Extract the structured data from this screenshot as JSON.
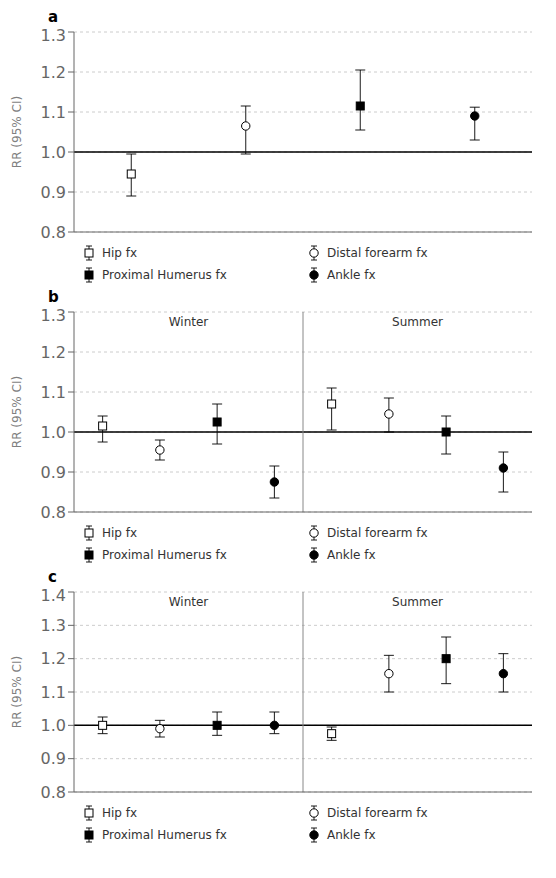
{
  "chart_data": [
    {
      "type": "scatter",
      "title": "a",
      "ylabel": "RR (95% CI)",
      "ylim": [
        0.8,
        1.3
      ],
      "yticks": [
        0.8,
        0.9,
        {
          "value": 1.0,
          "label": "1.0"
        },
        1.1,
        1.2,
        1.3
      ],
      "grid": true,
      "hline": 1.0,
      "tick_labels": "y",
      "legend": "bottom",
      "categories": [
        null,
        null,
        null,
        null
      ],
      "series": [
        {
          "name": "Hip fx",
          "color": "#000000",
          "marker": "open-square",
          "values": [
            0.945,
            null,
            null,
            null
          ],
          "error_low": [
            0.055,
            null,
            null,
            null
          ],
          "error_high": [
            0.05,
            null,
            null,
            null
          ]
        },
        {
          "name": "Distal forearm fx",
          "color": "#000000",
          "marker": "open-circle",
          "values": [
            null,
            1.065,
            null,
            null
          ],
          "error_low": [
            null,
            0.07,
            null,
            null
          ],
          "error_high": [
            null,
            0.05,
            null,
            null
          ]
        },
        {
          "name": "Proximal Humerus fx",
          "color": "#000000",
          "marker": "square",
          "values": [
            null,
            null,
            1.115,
            null
          ],
          "error_low": [
            null,
            null,
            0.06,
            null
          ],
          "error_high": [
            null,
            null,
            0.09,
            null
          ]
        },
        {
          "name": "Ankle fx",
          "color": "#000000",
          "marker": "circle",
          "values": [
            null,
            null,
            null,
            1.09
          ],
          "error_low": [
            null,
            null,
            null,
            0.06
          ],
          "error_high": [
            null,
            null,
            null,
            0.022
          ]
        }
      ]
    },
    {
      "type": "scatter",
      "title": "b",
      "ylabel": "RR (95% CI)",
      "ylim": [
        0.8,
        1.3
      ],
      "yticks": [
        0.8,
        0.9,
        {
          "value": 1.0,
          "label": "1.0"
        },
        1.1,
        1.2,
        1.3
      ],
      "grid": true,
      "hline": 1.0,
      "tick_labels": "y",
      "legend": "bottom",
      "annotations": [
        "Winter",
        "Summer"
      ],
      "categories": [
        null,
        null,
        null,
        null,
        null,
        null,
        null,
        null
      ],
      "series": [
        {
          "name": "Hip fx",
          "color": "#000000",
          "marker": "open-square",
          "values": [
            1.015,
            null,
            null,
            null,
            1.07,
            null,
            null,
            null
          ],
          "error_low": [
            0.04,
            null,
            null,
            null,
            0.065,
            null,
            null,
            null
          ],
          "error_high": [
            0.025,
            null,
            null,
            null,
            0.04,
            null,
            null,
            null
          ]
        },
        {
          "name": "Distal forearm fx",
          "color": "#000000",
          "marker": "open-circle",
          "values": [
            null,
            0.955,
            null,
            null,
            null,
            1.045,
            null,
            null
          ],
          "error_low": [
            null,
            0.025,
            null,
            null,
            null,
            0.045,
            null,
            null
          ],
          "error_high": [
            null,
            0.025,
            null,
            null,
            null,
            0.04,
            null,
            null
          ]
        },
        {
          "name": "Proximal Humerus fx",
          "color": "#000000",
          "marker": "square",
          "values": [
            null,
            null,
            1.025,
            null,
            null,
            null,
            1.0,
            null
          ],
          "error_low": [
            null,
            null,
            0.055,
            null,
            null,
            null,
            0.055,
            null
          ],
          "error_high": [
            null,
            null,
            0.045,
            null,
            null,
            null,
            0.04,
            null
          ]
        },
        {
          "name": "Ankle fx",
          "color": "#000000",
          "marker": "circle",
          "values": [
            null,
            null,
            null,
            0.875,
            null,
            null,
            null,
            0.91
          ],
          "error_low": [
            null,
            null,
            null,
            0.04,
            null,
            null,
            null,
            0.06
          ],
          "error_high": [
            null,
            null,
            null,
            0.04,
            null,
            null,
            null,
            0.04
          ]
        }
      ]
    },
    {
      "type": "scatter",
      "title": "c",
      "ylabel": "RR (95% CI)",
      "ylim": [
        0.8,
        1.4
      ],
      "yticks": [
        0.8,
        0.9,
        {
          "value": 1.0,
          "label": "1.0"
        },
        1.1,
        1.2,
        1.3,
        1.4
      ],
      "grid": true,
      "hline": 1.0,
      "tick_labels": "y",
      "legend": "bottom",
      "annotations": [
        "Winter",
        "Summer"
      ],
      "categories": [
        null,
        null,
        null,
        null,
        null,
        null,
        null,
        null
      ],
      "series": [
        {
          "name": "Hip fx",
          "color": "#000000",
          "marker": "open-square",
          "values": [
            1.0,
            null,
            null,
            null,
            0.975,
            null,
            null,
            null
          ],
          "error_low": [
            0.025,
            null,
            null,
            null,
            0.02,
            null,
            null,
            null
          ],
          "error_high": [
            0.025,
            null,
            null,
            null,
            0.02,
            null,
            null,
            null
          ]
        },
        {
          "name": "Distal forearm fx",
          "color": "#000000",
          "marker": "open-circle",
          "values": [
            null,
            0.99,
            null,
            null,
            null,
            1.155,
            null,
            null
          ],
          "error_low": [
            null,
            0.025,
            null,
            null,
            null,
            0.055,
            null,
            null
          ],
          "error_high": [
            null,
            0.025,
            null,
            null,
            null,
            0.055,
            null,
            null
          ]
        },
        {
          "name": "Proximal Humerus fx",
          "color": "#000000",
          "marker": "square",
          "values": [
            null,
            null,
            1.0,
            null,
            null,
            null,
            1.2,
            null
          ],
          "error_low": [
            null,
            null,
            0.03,
            null,
            null,
            null,
            0.075,
            null
          ],
          "error_high": [
            null,
            null,
            0.04,
            null,
            null,
            null,
            0.065,
            null
          ]
        },
        {
          "name": "Ankle fx",
          "color": "#000000",
          "marker": "circle",
          "values": [
            null,
            null,
            null,
            1.0,
            null,
            null,
            null,
            1.155
          ],
          "error_low": [
            null,
            null,
            null,
            0.025,
            null,
            null,
            null,
            0.055
          ],
          "error_high": [
            null,
            null,
            null,
            0.04,
            null,
            null,
            null,
            0.06
          ]
        }
      ]
    }
  ]
}
